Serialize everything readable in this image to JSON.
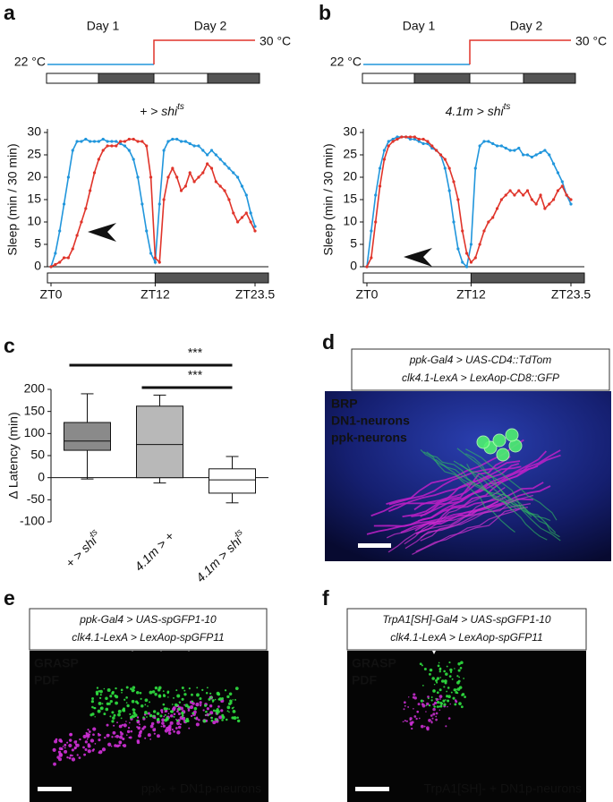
{
  "panel_labels": [
    "a",
    "b",
    "c",
    "d",
    "e",
    "f"
  ],
  "chart_data": [
    {
      "type": "line",
      "title": "+ > shi",
      "title_superscript": "ts",
      "day_labels": [
        "Day 1",
        "Day 2"
      ],
      "ylabel": "Sleep (min / 30 min)",
      "x": [
        0,
        0.5,
        1,
        1.5,
        2,
        2.5,
        3,
        3.5,
        4,
        4.5,
        5,
        5.5,
        6,
        6.5,
        7,
        7.5,
        8,
        8.5,
        9,
        9.5,
        10,
        10.5,
        11,
        11.5,
        12,
        12.5,
        13,
        13.5,
        14,
        14.5,
        15,
        15.5,
        16,
        16.5,
        17,
        17.5,
        18,
        18.5,
        19,
        19.5,
        20,
        20.5,
        21,
        21.5,
        22,
        22.5,
        23,
        23.5
      ],
      "xlim": [
        0,
        23.5
      ],
      "xticks": [
        {
          "value": 0,
          "label": "ZT0"
        },
        {
          "value": 12,
          "label": "ZT12"
        },
        {
          "value": 23.5,
          "label": "ZT23.5"
        }
      ],
      "ylim": [
        0,
        30
      ],
      "yticks": [
        0,
        5,
        10,
        15,
        20,
        25,
        30
      ],
      "series": [
        {
          "name": "22 °C",
          "color": "#2196dc",
          "values": [
            0,
            3,
            8,
            14,
            20,
            26,
            28,
            28,
            28.5,
            28,
            28,
            28,
            28.5,
            28,
            28,
            28,
            27.5,
            27,
            26,
            24,
            20,
            14,
            8,
            3,
            1,
            14,
            26,
            28,
            28.5,
            28.5,
            28,
            28,
            27.5,
            27,
            27,
            26,
            25,
            26,
            25,
            24,
            23,
            22,
            21,
            20,
            18,
            16,
            12,
            9
          ]
        },
        {
          "name": "30 °C",
          "color": "#e0342a",
          "values": [
            0,
            0.5,
            1,
            2,
            2,
            4,
            7,
            10,
            13,
            17,
            21,
            24,
            26,
            27,
            27,
            27,
            28,
            28,
            28.5,
            28.5,
            28,
            28,
            27,
            20,
            2,
            1,
            15,
            20,
            22,
            20,
            17,
            18,
            21,
            19,
            20,
            21,
            23,
            22,
            19,
            18,
            17,
            15,
            12,
            10,
            11,
            12,
            10,
            8
          ]
        }
      ]
    },
    {
      "type": "line",
      "title": "4.1m > shi",
      "title_superscript": "ts",
      "day_labels": [
        "Day 1",
        "Day 2"
      ],
      "ylabel": "Sleep (min / 30 min)",
      "x": [
        0,
        0.5,
        1,
        1.5,
        2,
        2.5,
        3,
        3.5,
        4,
        4.5,
        5,
        5.5,
        6,
        6.5,
        7,
        7.5,
        8,
        8.5,
        9,
        9.5,
        10,
        10.5,
        11,
        11.5,
        12,
        12.5,
        13,
        13.5,
        14,
        14.5,
        15,
        15.5,
        16,
        16.5,
        17,
        17.5,
        18,
        18.5,
        19,
        19.5,
        20,
        20.5,
        21,
        21.5,
        22,
        22.5,
        23,
        23.5
      ],
      "xlim": [
        0,
        23.5
      ],
      "xticks": [
        {
          "value": 0,
          "label": "ZT0"
        },
        {
          "value": 12,
          "label": "ZT12"
        },
        {
          "value": 23.5,
          "label": "ZT23.5"
        }
      ],
      "ylim": [
        0,
        30
      ],
      "yticks": [
        0,
        5,
        10,
        15,
        20,
        25,
        30
      ],
      "series": [
        {
          "name": "22 °C",
          "color": "#2196dc",
          "values": [
            0,
            8,
            16,
            22,
            26,
            28,
            28.5,
            29,
            29,
            29,
            28.5,
            28.5,
            28,
            27.5,
            27.5,
            26.5,
            26,
            25,
            22,
            17,
            10,
            4,
            1,
            0,
            5,
            22,
            27,
            28,
            28,
            27.5,
            27,
            27,
            26.5,
            26,
            26,
            26.5,
            25,
            25,
            24.5,
            25,
            25.5,
            26,
            25,
            23,
            21,
            19,
            16,
            14
          ]
        },
        {
          "name": "30 °C",
          "color": "#e0342a",
          "values": [
            0,
            2,
            10,
            18,
            24,
            27,
            28,
            28.5,
            29,
            29,
            29,
            29,
            28.5,
            28.5,
            28,
            27,
            26,
            25,
            24,
            22,
            19,
            15,
            8,
            3,
            1,
            2,
            5,
            8,
            10,
            11,
            13,
            15,
            16,
            17,
            16,
            17,
            16,
            17,
            15,
            14,
            16,
            13,
            14,
            15,
            17,
            18,
            16,
            15
          ]
        }
      ]
    },
    {
      "type": "box",
      "ylabel": "Δ Latency (min)",
      "categories": [
        "+ > shi",
        "4.1m > +",
        "4.1m > shi"
      ],
      "category_superscripts": [
        "ts",
        null,
        "ts"
      ],
      "ylim": [
        -100,
        200
      ],
      "yticks": [
        -100,
        -50,
        0,
        50,
        100,
        150,
        200
      ],
      "boxes": [
        {
          "min": -3,
          "q1": 62,
          "median": 83,
          "q3": 125,
          "max": 190,
          "color": "#8a8a8a"
        },
        {
          "min": -12,
          "q1": 0,
          "median": 75,
          "q3": 162,
          "max": 187,
          "color": "#b8b8b8"
        },
        {
          "min": -57,
          "q1": -35,
          "median": -5,
          "q3": 20,
          "max": 48,
          "color": "#ffffff"
        }
      ],
      "significance": [
        {
          "label": "***",
          "from": 0,
          "to": 2
        },
        {
          "label": "***",
          "from": 1,
          "to": 2
        }
      ]
    }
  ],
  "panels": [
    {
      "genotype": [
        "ppk-Gal4 > UAS-CD4::TdTom",
        "clk4.1-LexA > LexAop-CD8::GFP"
      ],
      "channels": [
        {
          "name": "BRP",
          "color": "#3a5cff"
        },
        {
          "name": "DN1-neurons",
          "color": "#2ee04a"
        },
        {
          "name": "ppk-neurons",
          "color": "#e030e0"
        }
      ]
    },
    {
      "genotype": [
        "ppk-Gal4 > UAS-spGFP1-10",
        "clk4.1-LexA > LexAop-spGFP11"
      ],
      "channels": [
        {
          "name": "GRASP",
          "color": "#2ee04a"
        },
        {
          "name": "PDF",
          "color": "#e030e0"
        }
      ],
      "caption": "ppk- + DN1p-neurons"
    },
    {
      "genotype": [
        "TrpA1[SH]-Gal4 > UAS-spGFP1-10",
        "clk4.1-LexA > LexAop-spGFP11"
      ],
      "channels": [
        {
          "name": "GRASP",
          "color": "#2ee04a"
        },
        {
          "name": "PDF",
          "color": "#e030e0"
        }
      ],
      "caption": "TrpA1[SH]- + DN1p-neurons"
    }
  ]
}
